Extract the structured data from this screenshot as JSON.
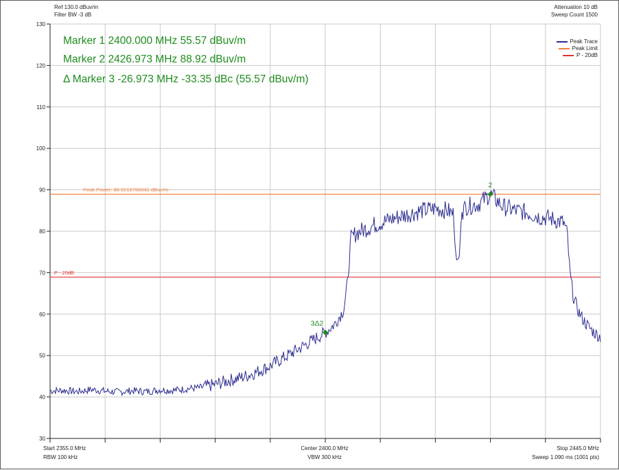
{
  "header": {
    "ref": "Ref 130.0 dBuv/m",
    "filter": "Filter BW -3 dB",
    "attenuation": "Attenuation 10 dB",
    "sweep_count": "Sweep Count 1500"
  },
  "markers_text": [
    "Marker 1 2400.000 MHz 55.57 dBuv/m",
    "Marker 2 2426.973 MHz 88.92 dBuv/m",
    "Δ Marker 3 -26.973 MHz -33.35 dBc (55.57 dBuv/m)"
  ],
  "footer": {
    "start": "Start 2355.0 MHz",
    "rbw": "RBW 100 kHz",
    "center": "Center 2400.0 MHz",
    "vbw": "VBW 300 kHz",
    "stop": "Stop 2445.0 MHz",
    "sweep": "Sweep 1.090 ms (1001 pts)"
  },
  "colors": {
    "trace": "#2b2b8f",
    "peak_limit": "#f08040",
    "p20db": "#e03030",
    "marker": "#1e8c1e",
    "grid": "#c8c8c8"
  },
  "chart_data": {
    "type": "line",
    "xlabel": "",
    "ylabel": "",
    "xlim": [
      2355.0,
      2445.0
    ],
    "ylim": [
      30,
      130
    ],
    "y_ticks": [
      30,
      40,
      50,
      60,
      70,
      80,
      90,
      100,
      110,
      120,
      130
    ],
    "y_unit": "dBuv/m",
    "legend": {
      "placement": "top-right",
      "entries": [
        {
          "name": "Peak Trace",
          "color": "#2b2b8f"
        },
        {
          "name": "Peak Limit",
          "color": "#f08040"
        },
        {
          "name": "P - 20dB",
          "color": "#e03030"
        }
      ]
    },
    "hlines": [
      {
        "name": "Peak Limit",
        "y": 88.92,
        "label": "Peak Power: 88.9219799042 dBuv/m",
        "color": "#f08040"
      },
      {
        "name": "P - 20dB",
        "y": 68.92,
        "label": "P - 20dB",
        "color": "#e03030"
      }
    ],
    "series": [
      {
        "name": "Peak Trace",
        "x": [
          2355.0,
          2357.25,
          2359.5,
          2361.75,
          2364.0,
          2366.25,
          2368.5,
          2370.75,
          2373.0,
          2375.25,
          2377.5,
          2379.75,
          2382.0,
          2384.25,
          2386.5,
          2388.75,
          2391.0,
          2393.25,
          2395.5,
          2397.75,
          2400.0,
          2401.5,
          2403.0,
          2403.6,
          2404.2,
          2405.0,
          2406.5,
          2408.0,
          2410.0,
          2412.0,
          2414.0,
          2416.0,
          2418.0,
          2420.0,
          2421.0,
          2421.4,
          2421.9,
          2422.3,
          2423.0,
          2425.0,
          2426.97,
          2429.0,
          2431.0,
          2433.0,
          2435.0,
          2437.0,
          2439.0,
          2439.6,
          2440.0,
          2440.6,
          2441.3,
          2442.0,
          2443.0,
          2444.0,
          2445.0
        ],
        "y": [
          41.5,
          41.6,
          41.3,
          41.8,
          41.4,
          41.2,
          41.5,
          41.3,
          41.7,
          41.6,
          42.0,
          42.3,
          43.0,
          44.0,
          44.8,
          46.0,
          47.5,
          49.5,
          51.5,
          53.5,
          55.57,
          57.5,
          61.0,
          67.0,
          78.0,
          79.5,
          80.5,
          81.5,
          82.5,
          83.5,
          84.3,
          85.0,
          85.5,
          85.0,
          84.0,
          73.0,
          73.5,
          84.5,
          86.0,
          86.5,
          88.92,
          86.0,
          85.0,
          84.5,
          83.5,
          83.0,
          82.0,
          79.0,
          70.0,
          64.0,
          61.0,
          59.0,
          57.0,
          55.5,
          54.5
        ]
      }
    ],
    "markers": [
      {
        "label": "2",
        "x": 2426.973,
        "y": 88.92
      },
      {
        "label": "3Δ2",
        "x": 2400.0,
        "y": 55.57
      }
    ]
  }
}
